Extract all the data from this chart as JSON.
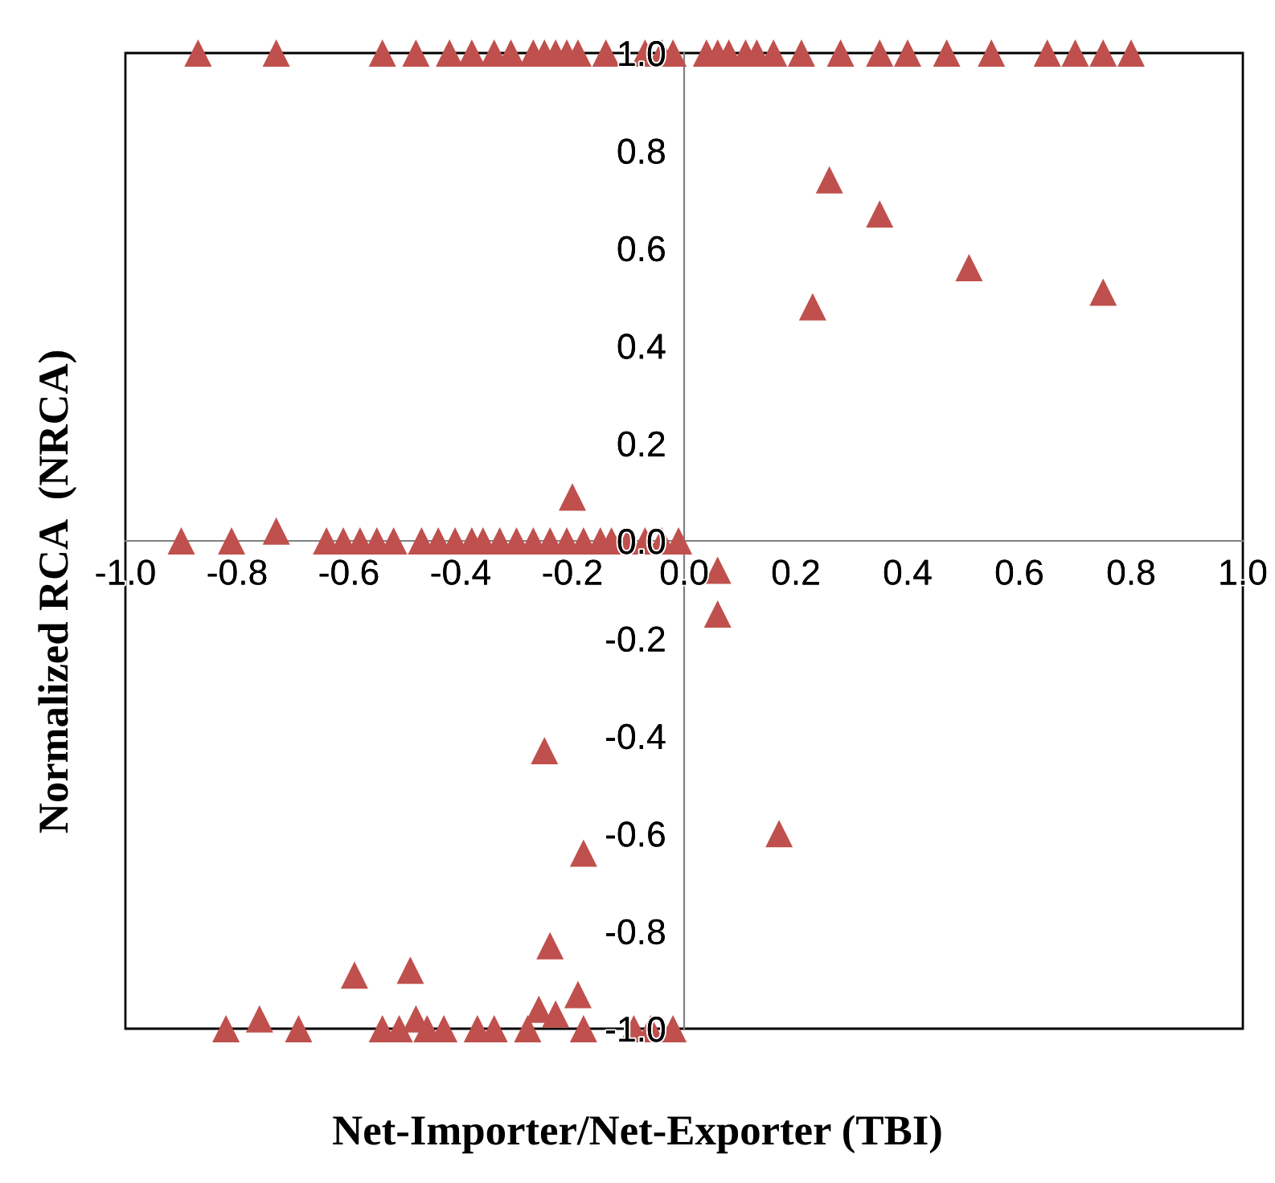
{
  "chart_data": {
    "type": "scatter",
    "xlabel": "Net-Importer/Net-Exporter (TBI)",
    "ylabel": "Normalized RCA  (NRCA)",
    "marker": "triangle",
    "grid": false,
    "legend": false,
    "xlim": [
      -1.0,
      1.0
    ],
    "ylim": [
      -1.0,
      1.0
    ],
    "xticks": [
      {
        "value": -1,
        "label": "-1.0"
      },
      -0.8,
      -0.6,
      -0.4,
      -0.2,
      {
        "value": 0,
        "label": "0.0"
      },
      0.2,
      0.4,
      0.6,
      0.8,
      {
        "value": 1,
        "label": "1.0"
      }
    ],
    "yticks": [
      {
        "value": -1,
        "label": "-1.0"
      },
      -0.8,
      -0.6,
      -0.4,
      -0.2,
      {
        "value": 0,
        "label": "0.0"
      },
      0.2,
      0.4,
      0.6,
      0.8,
      {
        "value": 1,
        "label": "1.0"
      }
    ],
    "series": [
      {
        "color": "#c0504d",
        "x": [
          -0.87,
          -0.73,
          -0.54,
          -0.48,
          -0.42,
          -0.38,
          -0.34,
          -0.31,
          -0.27,
          -0.25,
          -0.23,
          -0.21,
          -0.19,
          -0.14,
          -0.07,
          -0.04,
          -0.02,
          0.04,
          0.06,
          0.08,
          0.11,
          0.13,
          0.16,
          0.21,
          0.28,
          0.35,
          0.4,
          0.47,
          0.55,
          0.65,
          0.7,
          0.75,
          0.8,
          0.26,
          0.35,
          0.51,
          0.75,
          0.23,
          -0.9,
          -0.81,
          -0.73,
          -0.64,
          -0.61,
          -0.58,
          -0.55,
          -0.52,
          -0.47,
          -0.44,
          -0.41,
          -0.38,
          -0.36,
          -0.33,
          -0.3,
          -0.27,
          -0.24,
          -0.21,
          -0.18,
          -0.15,
          -0.13,
          -0.1,
          -0.07,
          -0.04,
          -0.01,
          -0.2,
          0.06,
          0.06,
          -0.25,
          -0.18,
          0.17,
          -0.24,
          -0.59,
          -0.49,
          -0.82,
          -0.76,
          -0.69,
          -0.54,
          -0.51,
          -0.48,
          -0.46,
          -0.43,
          -0.37,
          -0.34,
          -0.28,
          -0.26,
          -0.23,
          -0.19,
          -0.18,
          -0.09,
          -0.06,
          -0.02
        ],
        "values": [
          1.0,
          1.0,
          1.0,
          1.0,
          1.0,
          1.0,
          1.0,
          1.0,
          1.0,
          1.0,
          1.0,
          1.0,
          1.0,
          1.0,
          1.0,
          1.0,
          1.0,
          1.0,
          1.0,
          1.0,
          1.0,
          1.0,
          1.0,
          1.0,
          1.0,
          1.0,
          1.0,
          1.0,
          1.0,
          1.0,
          1.0,
          1.0,
          1.0,
          0.74,
          0.67,
          0.56,
          0.51,
          0.48,
          0.0,
          0.0,
          0.02,
          0.0,
          0.0,
          0.0,
          0.0,
          0.0,
          0.0,
          0.0,
          0.0,
          0.0,
          0.0,
          0.0,
          0.0,
          0.0,
          0.0,
          0.0,
          0.0,
          0.0,
          0.0,
          0.0,
          0.0,
          0.0,
          0.0,
          0.09,
          -0.06,
          -0.15,
          -0.43,
          -0.64,
          -0.6,
          -0.83,
          -0.89,
          -0.88,
          -1.0,
          -0.98,
          -1.0,
          -1.0,
          -1.0,
          -0.98,
          -1.0,
          -1.0,
          -1.0,
          -1.0,
          -1.0,
          -0.96,
          -0.97,
          -0.93,
          -1.0,
          -1.0,
          -1.0,
          -1.0
        ]
      }
    ]
  }
}
